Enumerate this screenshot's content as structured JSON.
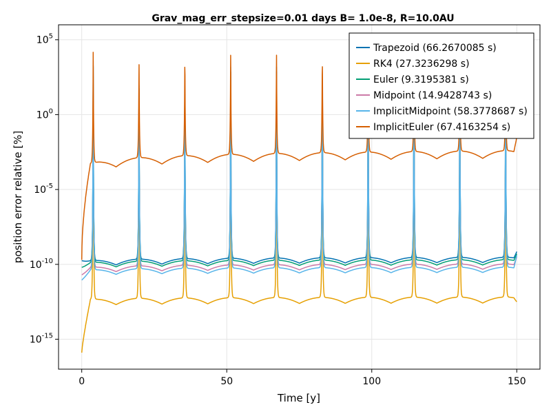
{
  "chart_data": {
    "type": "line",
    "title": "Grav_mag_err_stepsize=0.01 days B= 1.0e-8, R=10.0AU",
    "xlabel": "Time [y]",
    "ylabel": "position error relative [%]",
    "xlim": [
      -8,
      158
    ],
    "ylim_log10": [
      -17,
      6
    ],
    "yscale": "log10",
    "grid": true,
    "legend_position": "top-right",
    "x_ticks": [
      {
        "value": 0,
        "label": "0"
      },
      {
        "value": 50,
        "label": "50"
      },
      {
        "value": 100,
        "label": "100"
      },
      {
        "value": 150,
        "label": "150"
      }
    ],
    "y_ticks": [
      {
        "exp": 5,
        "base": "10",
        "sup": "5"
      },
      {
        "exp": 0,
        "base": "10",
        "sup": "0"
      },
      {
        "exp": -5,
        "base": "10",
        "sup": "-5"
      },
      {
        "exp": -10,
        "base": "10",
        "sup": "-10"
      },
      {
        "exp": -15,
        "base": "10",
        "sup": "-15"
      }
    ],
    "period_years": 31.6,
    "peak_phase_years": 3.95,
    "series": [
      {
        "name": "Trapezoid (66.2670085 s)",
        "color": "#0072b2",
        "start": -9.75,
        "start_decay": 1.0,
        "baseline": -9.85,
        "baseline_growth": 0.15,
        "trough": 0.35,
        "peak": 3.7,
        "tail_end": -9.15
      },
      {
        "name": "RK4 (27.3236298 s)",
        "color": "#e69f00",
        "start": -15.9,
        "start_decay": 0.8,
        "baseline": -12.4,
        "baseline_growth": 0.1,
        "trough": 0.4,
        "peak": 3.0,
        "tail_end": -12.5
      },
      {
        "name": "Euler (9.3195381 s)",
        "color": "#009e73",
        "start": -10.2,
        "start_decay": 1.0,
        "baseline": -9.95,
        "baseline_growth": 0.12,
        "trough": 0.35,
        "peak": 3.65,
        "tail_end": -9.3
      },
      {
        "name": "Midpoint (14.9428743 s)",
        "color": "#cc79a7",
        "start": -10.7,
        "start_decay": 1.0,
        "baseline": -10.3,
        "baseline_growth": 0.15,
        "trough": 0.35,
        "peak": 3.6,
        "tail_end": -9.5
      },
      {
        "name": "ImplicitMidpoint (58.3778687 s)",
        "color": "#56b4e9",
        "start": -11.05,
        "start_decay": 1.0,
        "baseline": -10.45,
        "baseline_growth": 0.12,
        "trough": 0.35,
        "peak": 4.05,
        "tail_end": -9.4
      },
      {
        "name": "ImplicitEuler (67.4163254 s)",
        "color": "#d55e00",
        "start": -9.7,
        "start_decay": 0.5,
        "baseline": -3.6,
        "baseline_growth": 0.55,
        "trough": 0.5,
        "peak": 4.4,
        "tail_end": -1.5
      }
    ]
  }
}
